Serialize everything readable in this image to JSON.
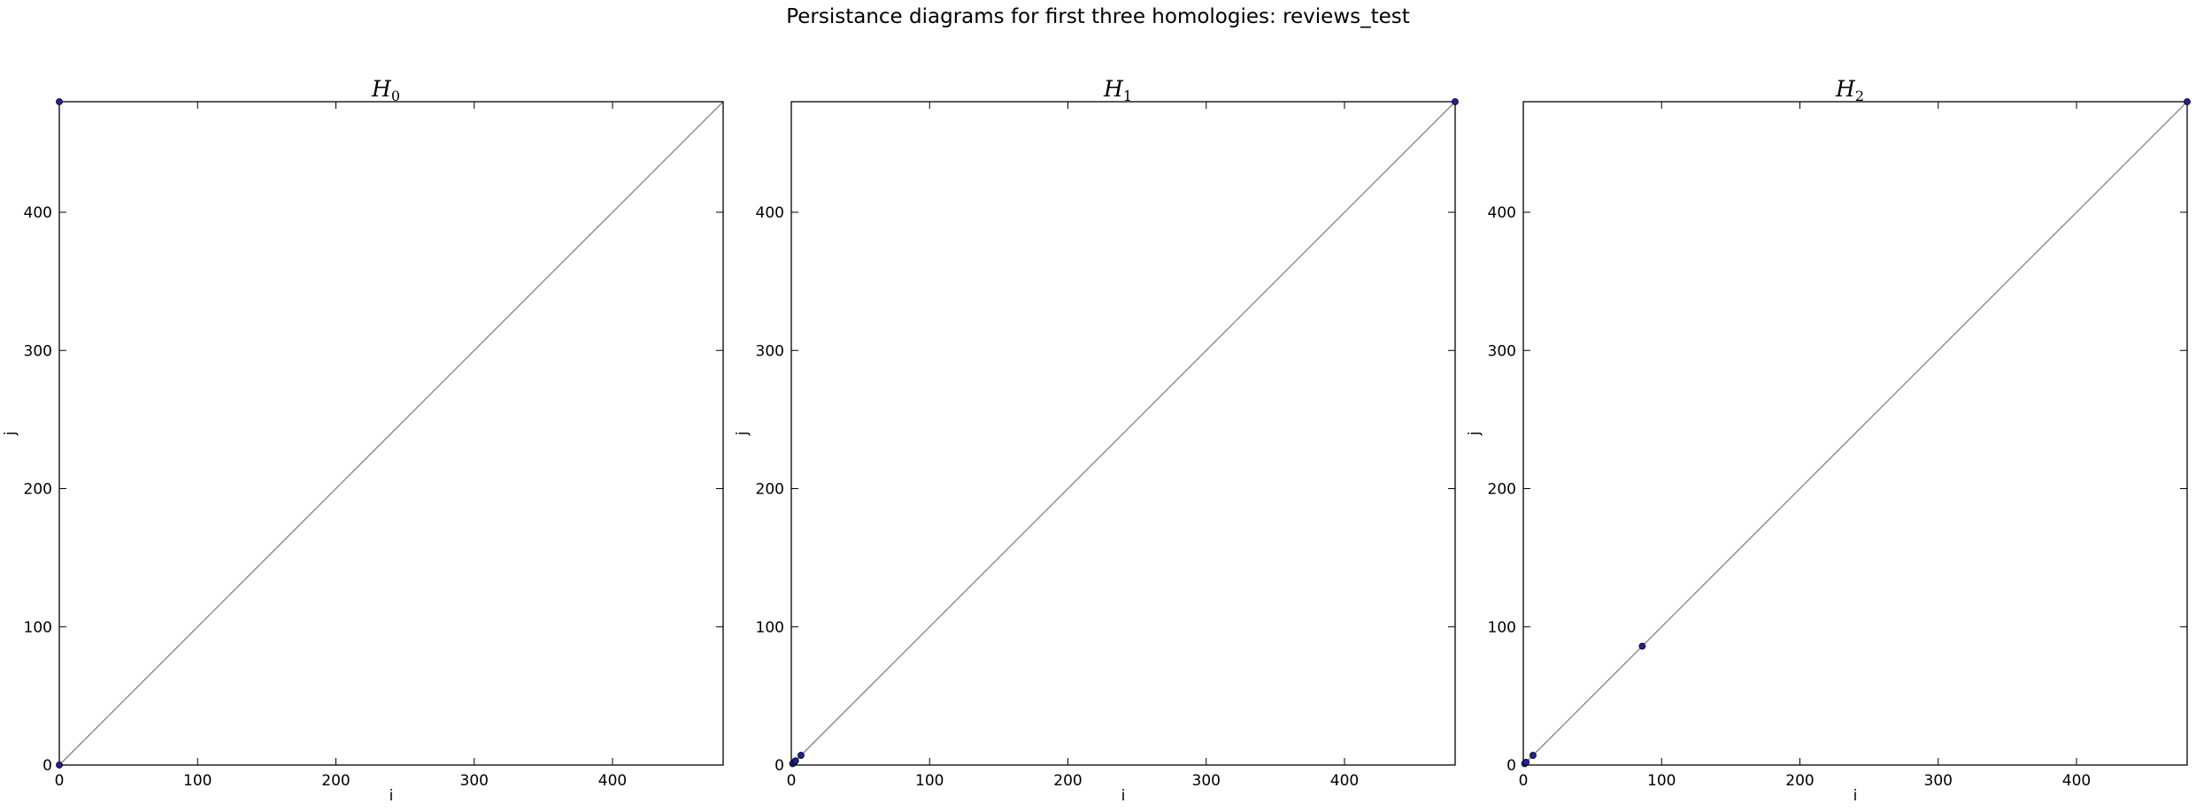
{
  "chart_data": {
    "suptitle": "Persistance diagrams for first three homologies: reviews_test",
    "panels": [
      {
        "type": "scatter",
        "title_main": "H",
        "title_sub": "0",
        "xlabel": "i",
        "ylabel": "j",
        "xlim": [
          0,
          480
        ],
        "ylim": [
          0,
          480
        ],
        "xticks": [
          0,
          100,
          200,
          300,
          400
        ],
        "yticks": [
          0,
          100,
          200,
          300,
          400
        ],
        "diagonal": true,
        "grid": false,
        "points": [
          {
            "x": 0,
            "y": 0
          },
          {
            "x": 0,
            "y": 480
          }
        ]
      },
      {
        "type": "scatter",
        "title_main": "H",
        "title_sub": "1",
        "xlabel": "i",
        "ylabel": "j",
        "xlim": [
          0,
          480
        ],
        "ylim": [
          0,
          480
        ],
        "xticks": [
          0,
          100,
          200,
          300,
          400
        ],
        "yticks": [
          0,
          100,
          200,
          300,
          400
        ],
        "diagonal": true,
        "grid": false,
        "points": [
          {
            "x": 1,
            "y": 1
          },
          {
            "x": 2,
            "y": 2
          },
          {
            "x": 3,
            "y": 3
          },
          {
            "x": 7,
            "y": 7
          },
          {
            "x": 480,
            "y": 480
          }
        ]
      },
      {
        "type": "scatter",
        "title_main": "H",
        "title_sub": "2",
        "xlabel": "i",
        "ylabel": "j",
        "xlim": [
          0,
          480
        ],
        "ylim": [
          0,
          480
        ],
        "xticks": [
          0,
          100,
          200,
          300,
          400
        ],
        "yticks": [
          0,
          100,
          200,
          300,
          400
        ],
        "diagonal": true,
        "grid": false,
        "points": [
          {
            "x": 1,
            "y": 1
          },
          {
            "x": 2,
            "y": 2
          },
          {
            "x": 7,
            "y": 7
          },
          {
            "x": 86,
            "y": 86
          },
          {
            "x": 480,
            "y": 480
          }
        ]
      }
    ],
    "colors": {
      "point_fill": "#2020a0",
      "point_edge": "#000000",
      "diagonal": "#808080",
      "frame": "#000000"
    }
  }
}
